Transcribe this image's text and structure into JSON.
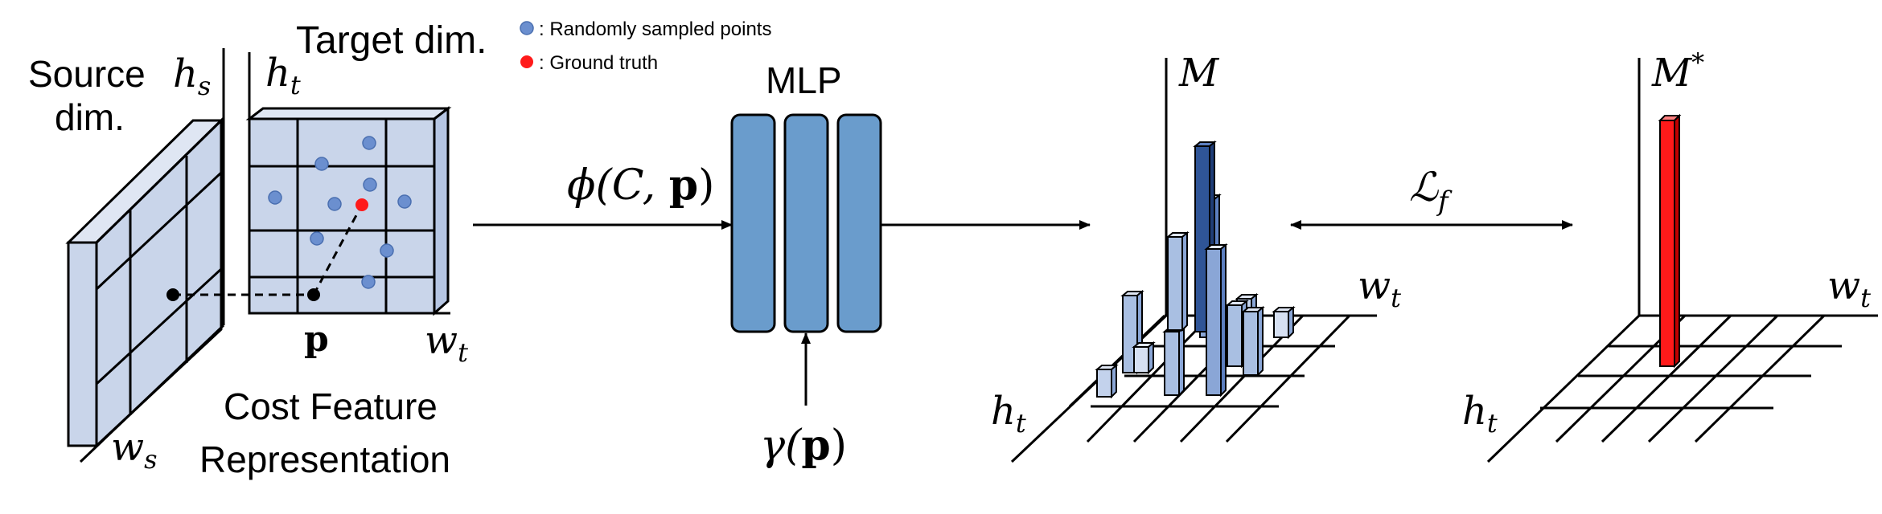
{
  "source": {
    "title_line1": "Source",
    "title_line2": "dim.",
    "h_label": "h",
    "h_sub": "s",
    "w_label": "w",
    "w_sub": "s"
  },
  "target": {
    "title": "Target dim.",
    "h_label": "h",
    "h_sub": "t",
    "w_label": "w",
    "w_sub": "t",
    "point_label": "p",
    "caption_line1": "Cost Feature",
    "caption_line2": "Representation"
  },
  "legend": {
    "items": [
      {
        "text": ": Randomly sampled points",
        "color": "#6b8fcf"
      },
      {
        "text": ": Ground truth",
        "color": "#ff1a1a"
      }
    ]
  },
  "mlp": {
    "title": "MLP",
    "input_label": "ϕ(C, ",
    "input_bold": "p",
    "input_close": ")",
    "pe_label": "γ(",
    "pe_bold": "p",
    "pe_close": ")",
    "layer_color": "#6a9ccc"
  },
  "pred": {
    "label": "M",
    "h_label": "h",
    "h_sub": "t",
    "w_label": "w",
    "w_sub": "t",
    "bar_color": "#a9bfe2",
    "peak_color": "#2f5597"
  },
  "loss": {
    "label": "ℒ",
    "sub": "f"
  },
  "gt": {
    "label": "M",
    "sup": "*",
    "h_label": "h",
    "h_sub": "t",
    "w_label": "w",
    "w_sub": "t",
    "bar_color": "#ff1a1a"
  }
}
